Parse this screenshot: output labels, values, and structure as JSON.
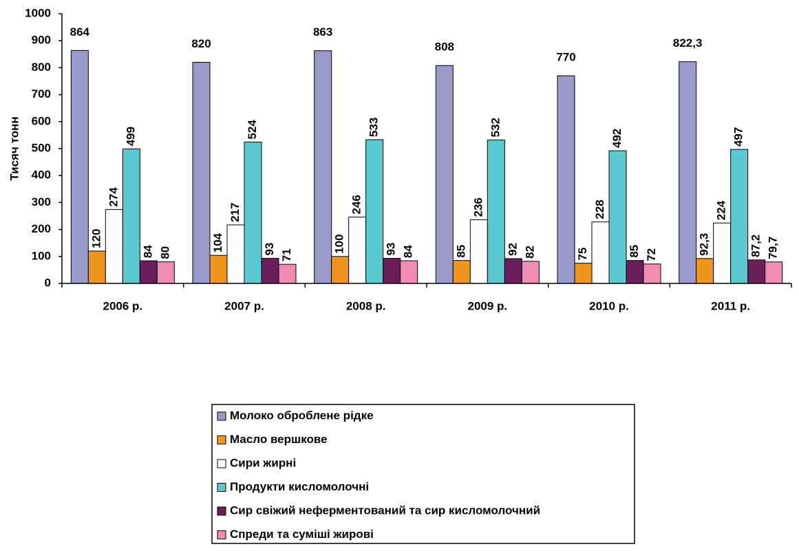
{
  "chart_data": {
    "type": "bar",
    "y_label": "Тисяч тонн",
    "categories": [
      "2006 р.",
      "2007 р.",
      "2008 р.",
      "2009 р.",
      "2010 р.",
      "2011 р."
    ],
    "series": [
      {
        "name": "Молоко оброблене рідке",
        "color": "#9999cc",
        "values": [
          864,
          820,
          863,
          808,
          770,
          822.3
        ],
        "value_labels": [
          "864",
          "820",
          "863",
          "808",
          "770",
          "822,3"
        ]
      },
      {
        "name": "Масло вершкове",
        "color": "#f0961e",
        "values": [
          120,
          104,
          100,
          85,
          75,
          92.3
        ],
        "value_labels": [
          "120",
          "104",
          "100",
          "85",
          "75",
          "92,3"
        ]
      },
      {
        "name": "Сири жирні",
        "color": "#ffffff",
        "values": [
          274,
          217,
          246,
          236,
          228,
          224
        ]
      },
      {
        "name": "Продукти кисломолочні",
        "color": "#5cc8d0",
        "values": [
          499,
          524,
          533,
          532,
          492,
          497
        ]
      },
      {
        "name": "Сир свіжий неферментований та сир кисломолочний",
        "color": "#6b1f5a",
        "values": [
          84,
          93,
          93,
          92,
          85,
          87.2
        ],
        "value_labels": [
          "84",
          "93",
          "93",
          "92",
          "85",
          "87,2"
        ]
      },
      {
        "name": "Спреди та суміші жирові",
        "color": "#f08cb4",
        "values": [
          80,
          71,
          84,
          82,
          72,
          79.7
        ],
        "value_labels": [
          "80",
          "71",
          "84",
          "82",
          "72",
          "79,7"
        ]
      }
    ],
    "ylim": [
      0,
      1000
    ],
    "yticks": [
      0,
      100,
      200,
      300,
      400,
      500,
      600,
      700,
      800,
      900,
      1000
    ],
    "legend": "bottom"
  }
}
